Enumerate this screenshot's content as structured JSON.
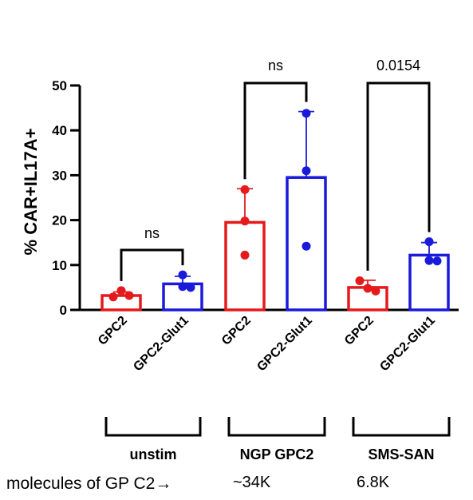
{
  "chart_data": {
    "type": "bar",
    "ylabel": "% CAR+IL17A+",
    "ylim": [
      0,
      50
    ],
    "yticks": [
      0,
      10,
      20,
      30,
      40,
      50
    ],
    "categories": [
      "GPC2",
      "GPC2-Glut1",
      "GPC2",
      "GPC2-Glut1",
      "GPC2",
      "GPC2-Glut1"
    ],
    "bars": [
      {
        "label": "GPC2",
        "group": "unstim",
        "mean": 3.2,
        "sd_upper": 4.0,
        "points": [
          2.9,
          4.3,
          3.2
        ],
        "color": "#e41a1c"
      },
      {
        "label": "GPC2-Glut1",
        "group": "unstim",
        "mean": 5.8,
        "sd_upper": 7.5,
        "points": [
          7.8,
          5.2,
          5.0
        ],
        "color": "#1a1adb"
      },
      {
        "label": "GPC2",
        "group": "NGP GPC2",
        "mean": 19.5,
        "sd_upper": 27.0,
        "points": [
          26.8,
          19.8,
          12.2
        ],
        "color": "#e41a1c"
      },
      {
        "label": "GPC2-Glut1",
        "group": "NGP GPC2",
        "mean": 29.5,
        "sd_upper": 44.2,
        "points": [
          43.8,
          31.0,
          14.2
        ],
        "color": "#1a1adb"
      },
      {
        "label": "GPC2",
        "group": "SMS-SAN",
        "mean": 5.0,
        "sd_upper": 6.6,
        "points": [
          6.5,
          4.8,
          4.2
        ],
        "color": "#e41a1c"
      },
      {
        "label": "GPC2-Glut1",
        "group": "SMS-SAN",
        "mean": 12.2,
        "sd_upper": 15.0,
        "points": [
          15.2,
          11.0,
          10.9
        ],
        "color": "#1a1adb"
      }
    ],
    "comparisons": [
      {
        "pair": [
          0,
          1
        ],
        "label": "ns"
      },
      {
        "pair": [
          2,
          3
        ],
        "label": "ns"
      },
      {
        "pair": [
          4,
          5
        ],
        "label": "0.0154"
      }
    ],
    "groups": [
      {
        "label": "unstim",
        "bars": [
          0,
          1
        ]
      },
      {
        "label": "NGP GPC2",
        "bars": [
          2,
          3
        ]
      },
      {
        "label": "SMS-SAN",
        "bars": [
          4,
          5
        ]
      }
    ],
    "footnote": {
      "label": "molecules of GP C2→",
      "values": [
        "~34K",
        "6.8K"
      ]
    }
  }
}
